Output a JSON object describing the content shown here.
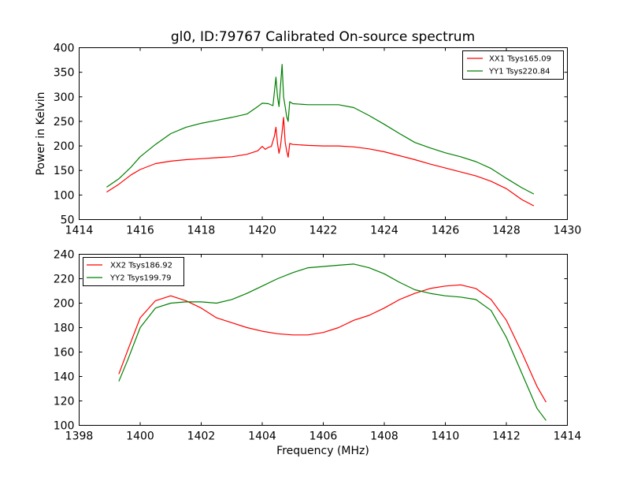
{
  "chart_data": [
    {
      "type": "line",
      "title": "gl0, ID:79767 Calibrated On-source spectrum",
      "xlabel": "",
      "ylabel": "Power in Kelvin",
      "xlim": [
        1414,
        1430
      ],
      "ylim": [
        50,
        400
      ],
      "xticks": [
        1414,
        1416,
        1418,
        1420,
        1422,
        1424,
        1426,
        1428,
        1430
      ],
      "yticks": [
        50,
        100,
        150,
        200,
        250,
        300,
        350,
        400
      ],
      "legend_position": "top-right",
      "series": [
        {
          "name": "XX1 Tsys165.09",
          "color": "#ff0000",
          "points": [
            [
              1414.9,
              106
            ],
            [
              1415.3,
              122
            ],
            [
              1415.7,
              141
            ],
            [
              1416.0,
              152
            ],
            [
              1416.5,
              164
            ],
            [
              1417.0,
              169
            ],
            [
              1417.5,
              172
            ],
            [
              1418.0,
              174
            ],
            [
              1418.5,
              176
            ],
            [
              1419.0,
              178
            ],
            [
              1419.5,
              183
            ],
            [
              1419.85,
              190
            ],
            [
              1420.0,
              199
            ],
            [
              1420.1,
              193
            ],
            [
              1420.2,
              197
            ],
            [
              1420.3,
              199
            ],
            [
              1420.4,
              220
            ],
            [
              1420.45,
              238
            ],
            [
              1420.5,
              205
            ],
            [
              1420.55,
              185
            ],
            [
              1420.6,
              200
            ],
            [
              1420.65,
              228
            ],
            [
              1420.7,
              258
            ],
            [
              1420.75,
              208
            ],
            [
              1420.8,
              190
            ],
            [
              1420.85,
              177
            ],
            [
              1420.9,
              205
            ],
            [
              1421.0,
              203
            ],
            [
              1421.5,
              201
            ],
            [
              1422.0,
              200
            ],
            [
              1422.5,
              200
            ],
            [
              1423.0,
              198
            ],
            [
              1423.5,
              194
            ],
            [
              1424.0,
              188
            ],
            [
              1424.5,
              180
            ],
            [
              1425.0,
              172
            ],
            [
              1425.5,
              163
            ],
            [
              1426.0,
              155
            ],
            [
              1426.5,
              147
            ],
            [
              1427.0,
              139
            ],
            [
              1427.5,
              128
            ],
            [
              1428.0,
              113
            ],
            [
              1428.5,
              91
            ],
            [
              1428.9,
              78
            ]
          ]
        },
        {
          "name": "YY1 Tsys220.84",
          "color": "#008000",
          "points": [
            [
              1414.9,
              116
            ],
            [
              1415.3,
              133
            ],
            [
              1415.7,
              157
            ],
            [
              1416.0,
              178
            ],
            [
              1416.5,
              203
            ],
            [
              1417.0,
              225
            ],
            [
              1417.5,
              238
            ],
            [
              1418.0,
              246
            ],
            [
              1418.5,
              252
            ],
            [
              1419.0,
              258
            ],
            [
              1419.5,
              265
            ],
            [
              1419.85,
              280
            ],
            [
              1420.0,
              287
            ],
            [
              1420.2,
              286
            ],
            [
              1420.35,
              282
            ],
            [
              1420.45,
              340
            ],
            [
              1420.5,
              300
            ],
            [
              1420.55,
              280
            ],
            [
              1420.65,
              366
            ],
            [
              1420.7,
              300
            ],
            [
              1420.75,
              280
            ],
            [
              1420.8,
              260
            ],
            [
              1420.85,
              250
            ],
            [
              1420.9,
              290
            ],
            [
              1421.0,
              286
            ],
            [
              1421.5,
              284
            ],
            [
              1422.0,
              284
            ],
            [
              1422.5,
              284
            ],
            [
              1423.0,
              278
            ],
            [
              1423.5,
              262
            ],
            [
              1424.0,
              244
            ],
            [
              1424.5,
              225
            ],
            [
              1425.0,
              207
            ],
            [
              1425.5,
              196
            ],
            [
              1426.0,
              186
            ],
            [
              1426.5,
              178
            ],
            [
              1427.0,
              168
            ],
            [
              1427.5,
              154
            ],
            [
              1428.0,
              134
            ],
            [
              1428.5,
              115
            ],
            [
              1428.9,
              102
            ]
          ]
        }
      ]
    },
    {
      "type": "line",
      "title": "",
      "xlabel": "Frequency (MHz)",
      "ylabel": "",
      "xlim": [
        1398,
        1414
      ],
      "ylim": [
        100,
        240
      ],
      "xticks": [
        1398,
        1400,
        1402,
        1404,
        1406,
        1408,
        1410,
        1412,
        1414
      ],
      "yticks": [
        100,
        120,
        140,
        160,
        180,
        200,
        220,
        240
      ],
      "legend_position": "top-left",
      "series": [
        {
          "name": "XX2 Tsys186.92",
          "color": "#ff0000",
          "points": [
            [
              1399.3,
              142
            ],
            [
              1399.6,
              162
            ],
            [
              1400.0,
              188
            ],
            [
              1400.5,
              202
            ],
            [
              1401.0,
              206
            ],
            [
              1401.5,
              202
            ],
            [
              1402.0,
              196
            ],
            [
              1402.5,
              188
            ],
            [
              1403.0,
              184
            ],
            [
              1403.5,
              180
            ],
            [
              1404.0,
              177
            ],
            [
              1404.5,
              175
            ],
            [
              1405.0,
              174
            ],
            [
              1405.5,
              174
            ],
            [
              1406.0,
              176
            ],
            [
              1406.5,
              180
            ],
            [
              1407.0,
              186
            ],
            [
              1407.5,
              190
            ],
            [
              1408.0,
              196
            ],
            [
              1408.5,
              203
            ],
            [
              1409.0,
              208
            ],
            [
              1409.5,
              212
            ],
            [
              1410.0,
              214
            ],
            [
              1410.5,
              215
            ],
            [
              1411.0,
              212
            ],
            [
              1411.5,
              203
            ],
            [
              1412.0,
              186
            ],
            [
              1412.5,
              160
            ],
            [
              1413.0,
              132
            ],
            [
              1413.3,
              119
            ]
          ]
        },
        {
          "name": "YY2 Tsys199.79",
          "color": "#008000",
          "points": [
            [
              1399.3,
              136
            ],
            [
              1399.6,
              154
            ],
            [
              1400.0,
              180
            ],
            [
              1400.5,
              196
            ],
            [
              1401.0,
              200
            ],
            [
              1401.5,
              201
            ],
            [
              1402.0,
              201
            ],
            [
              1402.5,
              200
            ],
            [
              1403.0,
              203
            ],
            [
              1403.5,
              208
            ],
            [
              1404.0,
              214
            ],
            [
              1404.5,
              220
            ],
            [
              1405.0,
              225
            ],
            [
              1405.5,
              229
            ],
            [
              1406.0,
              230
            ],
            [
              1406.5,
              231
            ],
            [
              1407.0,
              232
            ],
            [
              1407.5,
              229
            ],
            [
              1408.0,
              224
            ],
            [
              1408.5,
              217
            ],
            [
              1409.0,
              211
            ],
            [
              1409.5,
              208
            ],
            [
              1410.0,
              206
            ],
            [
              1410.5,
              205
            ],
            [
              1411.0,
              203
            ],
            [
              1411.5,
              194
            ],
            [
              1412.0,
              172
            ],
            [
              1412.5,
              143
            ],
            [
              1413.0,
              114
            ],
            [
              1413.3,
              104
            ]
          ]
        }
      ]
    }
  ]
}
